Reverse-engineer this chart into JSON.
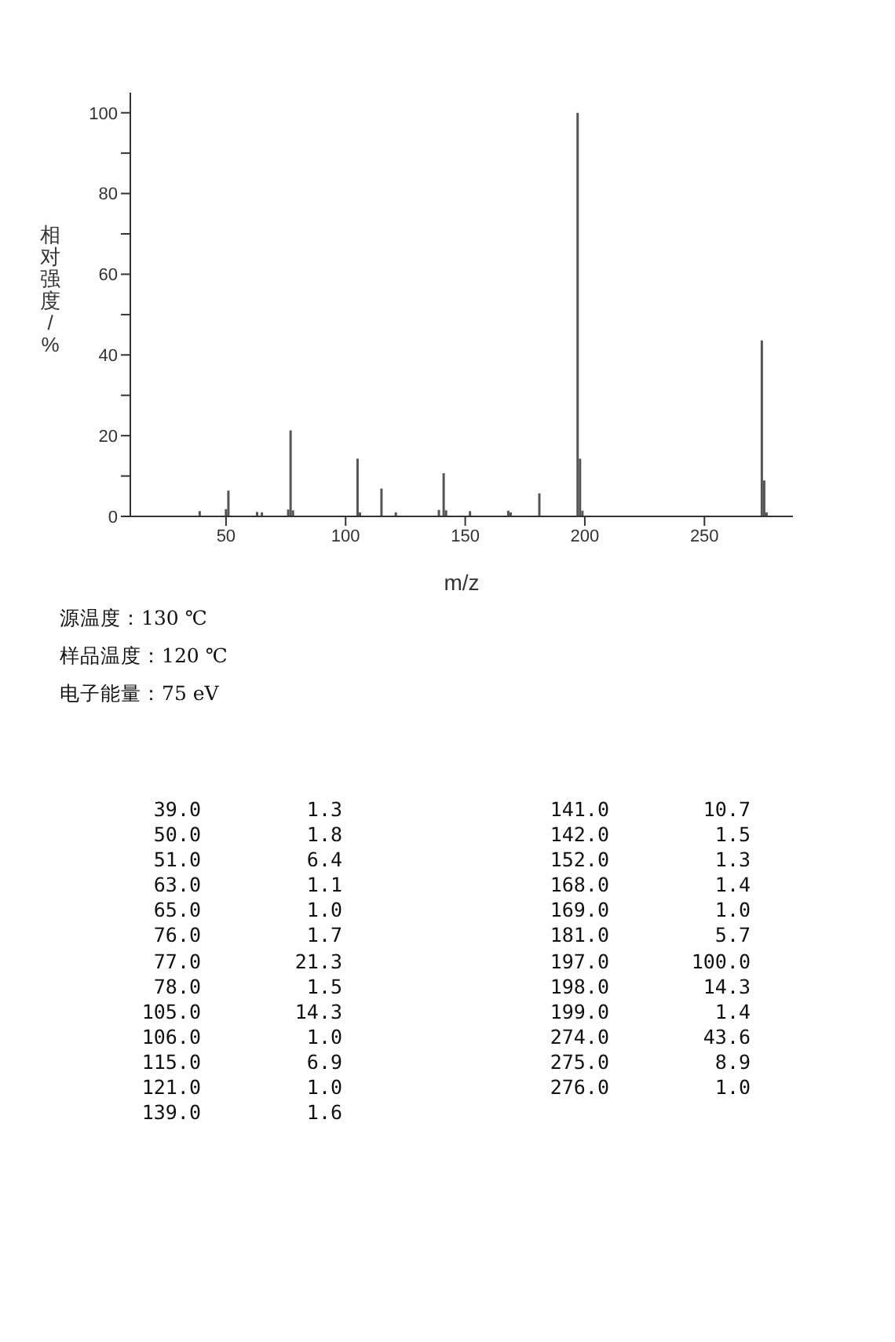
{
  "chart_data": [
    {
      "type": "bar",
      "xlabel": "m/z",
      "ylabel": "相对强度/%",
      "x": [
        39,
        50,
        51,
        63,
        65,
        76,
        77,
        78,
        105,
        106,
        115,
        121,
        139,
        141,
        142,
        152,
        168,
        169,
        181,
        197,
        198,
        199,
        274,
        275,
        276
      ],
      "values": [
        1.3,
        1.8,
        6.4,
        1.1,
        1.0,
        1.7,
        21.3,
        1.5,
        14.3,
        1.0,
        6.9,
        1.0,
        1.6,
        10.7,
        1.5,
        1.3,
        1.4,
        1.0,
        5.7,
        100.0,
        14.3,
        1.4,
        43.6,
        8.9,
        1.0
      ],
      "color": "#555555",
      "xlim": [
        10,
        287
      ],
      "xticks": [
        50,
        100,
        150,
        200,
        250
      ],
      "ylim": [
        0,
        105
      ],
      "yticks": [
        0,
        {
          "value": 10,
          "label": null
        },
        20,
        {
          "value": 30,
          "label": null
        },
        40,
        {
          "value": 50,
          "label": null
        },
        60,
        {
          "value": 70,
          "label": null
        },
        80,
        {
          "value": 90,
          "label": null
        },
        100
      ],
      "grid": false,
      "annotations": [
        "源温度：130 ℃",
        "样品温度：120 ℃",
        "电子能量：75 eV"
      ]
    },
    {
      "type": "other",
      "annotations": [
        "39.0",
        "1.3",
        "50.0",
        "1.8",
        "51.0",
        "6.4",
        "63.0",
        "1.1",
        "65.0",
        "1.0",
        "76.0",
        "1.7",
        "77.0",
        "21.3",
        "78.0",
        "1.5",
        "105.0",
        "14.3",
        "106.0",
        "1.0",
        "115.0",
        "6.9",
        "121.0",
        "1.0",
        "139.0",
        "1.6",
        "141.0",
        "10.7",
        "142.0",
        "1.5",
        "152.0",
        "1.3",
        "168.0",
        "1.4",
        "169.0",
        "1.0",
        "181.0",
        "5.7",
        "197.0",
        "100.0",
        "198.0",
        "14.3",
        "199.0",
        "1.4",
        "274.0",
        "43.6",
        "275.0",
        "8.9",
        "276.0",
        "1.0"
      ]
    }
  ]
}
